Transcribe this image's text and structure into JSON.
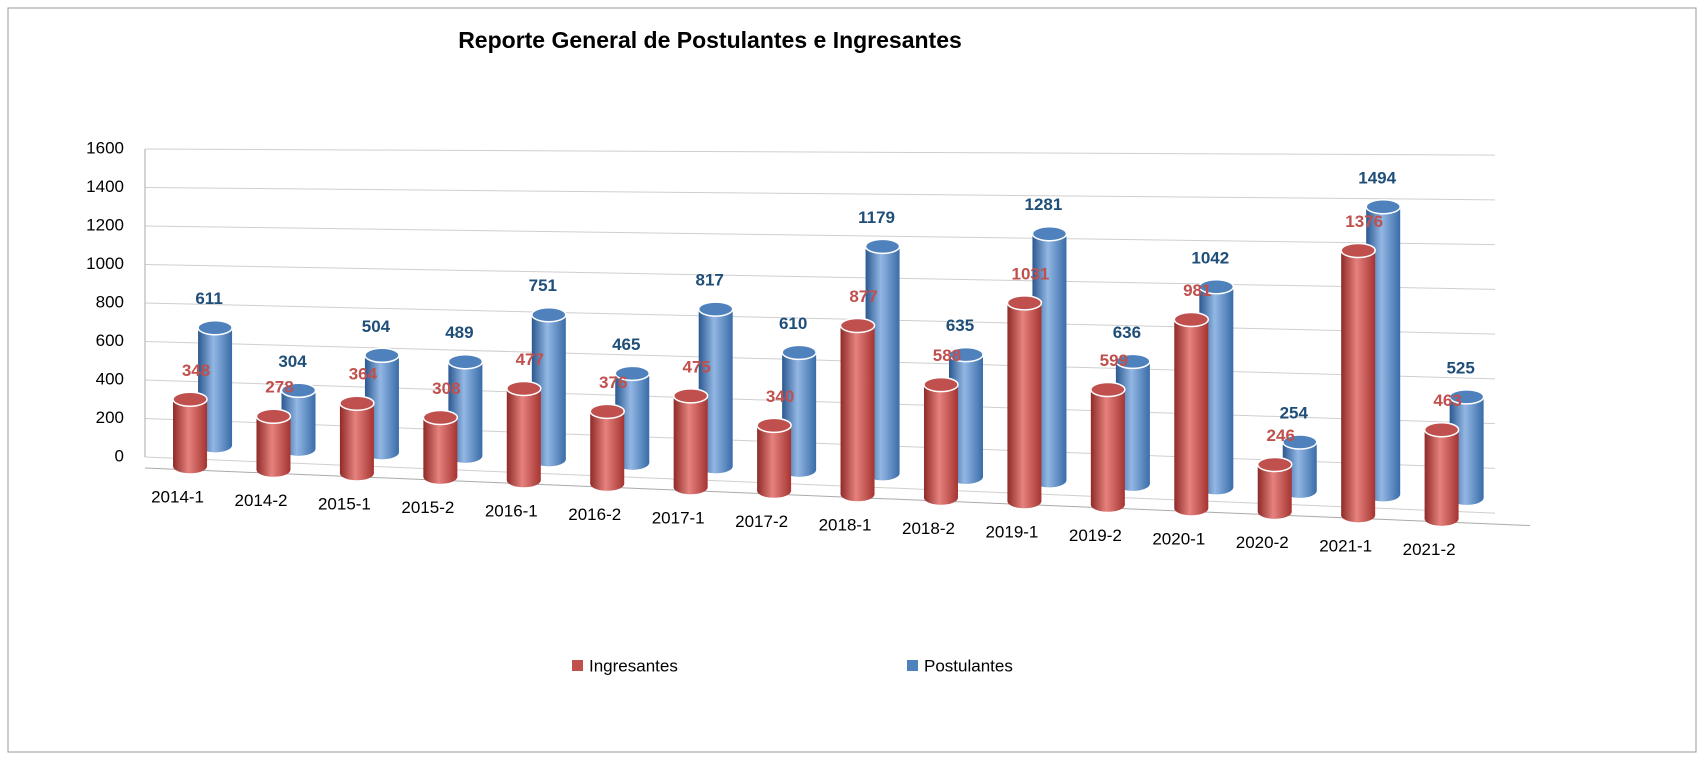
{
  "chart_data": {
    "type": "bar3d",
    "title": "Reporte General de Postulantes e Ingresantes",
    "categories": [
      "2014-1",
      "2014-2",
      "2015-1",
      "2015-2",
      "2016-1",
      "2016-2",
      "2017-1",
      "2017-2",
      "2018-1",
      "2018-2",
      "2019-1",
      "2019-2",
      "2020-1",
      "2020-2",
      "2021-1",
      "2021-2"
    ],
    "series": [
      {
        "name": "Ingresantes",
        "color": "#c0504d",
        "values": [
          348,
          278,
          364,
          308,
          477,
          376,
          475,
          340,
          877,
          588,
          1031,
          599,
          981,
          246,
          1376,
          463
        ]
      },
      {
        "name": "Postulantes",
        "color": "#4f81bd",
        "values": [
          611,
          304,
          504,
          489,
          751,
          465,
          817,
          610,
          1179,
          635,
          1281,
          636,
          1042,
          254,
          1494,
          525
        ]
      }
    ],
    "ylim": [
      0,
      1600
    ],
    "yticks": [
      0,
      200,
      400,
      600,
      800,
      1000,
      1200,
      1400,
      1600
    ],
    "grid": true,
    "legend": "bottom"
  }
}
